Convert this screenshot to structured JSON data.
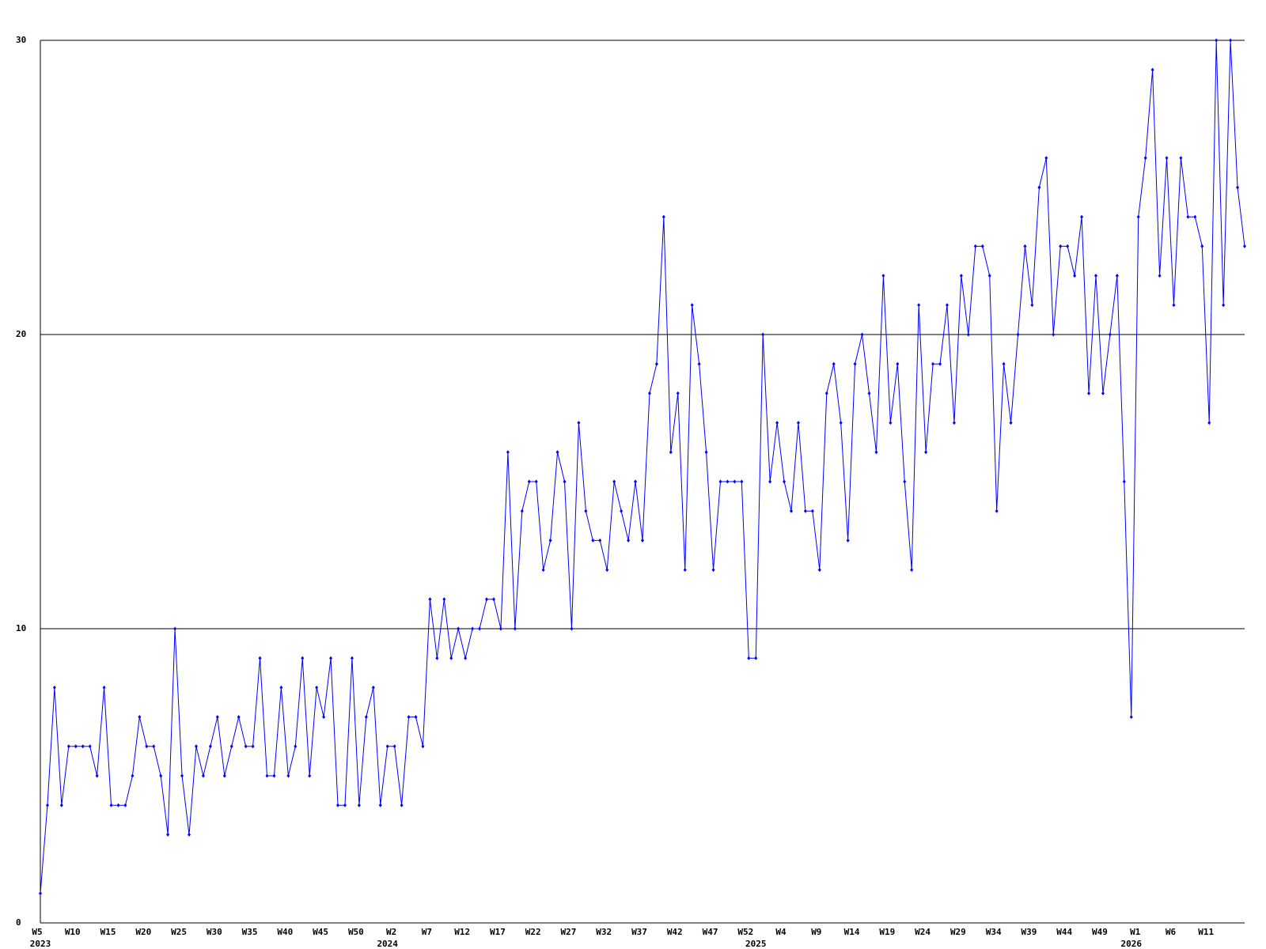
{
  "chart_data": {
    "type": "line",
    "categories": [
      "W5",
      null,
      null,
      null,
      null,
      "W10",
      null,
      null,
      null,
      null,
      "W15",
      null,
      null,
      null,
      null,
      "W20",
      null,
      null,
      null,
      null,
      "W25",
      null,
      null,
      null,
      null,
      "W30",
      null,
      null,
      null,
      null,
      "W35",
      null,
      null,
      null,
      null,
      "W40",
      null,
      null,
      null,
      null,
      "W45",
      null,
      null,
      null,
      null,
      "W50",
      null,
      null,
      null,
      null,
      "W2",
      null,
      null,
      null,
      null,
      "W7",
      null,
      null,
      null,
      null,
      "W12",
      null,
      null,
      null,
      null,
      "W17",
      null,
      null,
      null,
      null,
      "W22",
      null,
      null,
      null,
      null,
      "W27",
      null,
      null,
      null,
      null,
      "W32",
      null,
      null,
      null,
      null,
      "W37",
      null,
      null,
      null,
      null,
      "W42",
      null,
      null,
      null,
      null,
      "W47",
      null,
      null,
      null,
      null,
      "W52",
      null,
      null,
      null,
      null,
      "W4",
      null,
      null,
      null,
      null,
      "W9",
      null,
      null,
      null,
      null,
      "W14",
      null,
      null,
      null,
      null,
      "W19",
      null,
      null,
      null,
      null,
      "W24",
      null,
      null,
      null,
      null,
      "W29",
      null,
      null,
      null,
      null,
      "W34",
      null,
      null,
      null,
      null,
      "W39",
      null,
      null,
      null,
      null,
      "W44",
      null,
      null,
      null,
      null,
      "W49",
      null,
      null,
      null,
      null,
      "W1",
      null,
      null,
      null,
      null,
      "W6",
      null,
      null,
      null,
      null,
      "W11",
      null,
      null,
      null,
      null,
      null
    ],
    "category_years": [
      "2023",
      null,
      null,
      null,
      null,
      null,
      null,
      null,
      null,
      null,
      null,
      null,
      null,
      null,
      null,
      null,
      null,
      null,
      null,
      null,
      null,
      null,
      null,
      null,
      null,
      null,
      null,
      null,
      null,
      null,
      null,
      null,
      null,
      null,
      null,
      null,
      null,
      null,
      null,
      null,
      null,
      null,
      null,
      null,
      null,
      null,
      null,
      null,
      null,
      "2024",
      null,
      null,
      null,
      null,
      null,
      null,
      null,
      null,
      null,
      null,
      null,
      null,
      null,
      null,
      null,
      null,
      null,
      null,
      null,
      null,
      null,
      null,
      null,
      null,
      null,
      null,
      null,
      null,
      null,
      null,
      null,
      null,
      null,
      null,
      null,
      null,
      null,
      null,
      null,
      null,
      null,
      null,
      null,
      null,
      null,
      null,
      null,
      null,
      null,
      null,
      null,
      "2025",
      null,
      null,
      null,
      null,
      null,
      null,
      null,
      null,
      null,
      null,
      null,
      null,
      null,
      null,
      null,
      null,
      null,
      null,
      null,
      null,
      null,
      null,
      null,
      null,
      null,
      null,
      null,
      null,
      null,
      null,
      null,
      null,
      null,
      null,
      null,
      null,
      null,
      null,
      null,
      null,
      null,
      null,
      null,
      null,
      null,
      null,
      null,
      null,
      null,
      null,
      null,
      null,
      "2026",
      null,
      null,
      null,
      null,
      null,
      null,
      null,
      null,
      null,
      null,
      null,
      null,
      null,
      null,
      null,
      null
    ],
    "values": [
      1,
      4,
      8,
      4,
      6,
      6,
      6,
      6,
      5,
      8,
      4,
      4,
      4,
      5,
      7,
      6,
      6,
      5,
      3,
      10,
      5,
      3,
      6,
      5,
      6,
      7,
      5,
      6,
      7,
      6,
      6,
      9,
      5,
      5,
      8,
      5,
      6,
      9,
      5,
      8,
      7,
      9,
      4,
      4,
      9,
      4,
      7,
      8,
      4,
      6,
      6,
      4,
      7,
      7,
      6,
      11,
      9,
      11,
      9,
      10,
      9,
      10,
      10,
      11,
      11,
      10,
      16,
      10,
      14,
      15,
      15,
      12,
      13,
      16,
      15,
      10,
      17,
      14,
      13,
      13,
      12,
      15,
      14,
      13,
      15,
      13,
      18,
      19,
      24,
      16,
      18,
      12,
      21,
      19,
      16,
      12,
      15,
      15,
      15,
      15,
      9,
      9,
      20,
      15,
      17,
      15,
      14,
      17,
      14,
      14,
      12,
      18,
      19,
      17,
      13,
      19,
      20,
      18,
      16,
      22,
      17,
      19,
      15,
      12,
      21,
      16,
      19,
      19,
      21,
      17,
      22,
      20,
      23,
      23,
      22,
      14,
      19,
      17,
      20,
      23,
      21,
      25,
      26,
      20,
      23,
      23,
      22,
      24,
      18,
      22,
      18,
      20,
      22,
      15,
      7,
      24,
      26,
      29,
      22,
      26,
      21,
      26,
      24,
      24,
      23,
      17,
      30,
      21,
      30,
      25,
      23
    ],
    "color": "#0000ff",
    "ylim": [
      0,
      30
    ],
    "yticks": [
      0,
      10,
      20,
      30
    ],
    "grid": true
  }
}
